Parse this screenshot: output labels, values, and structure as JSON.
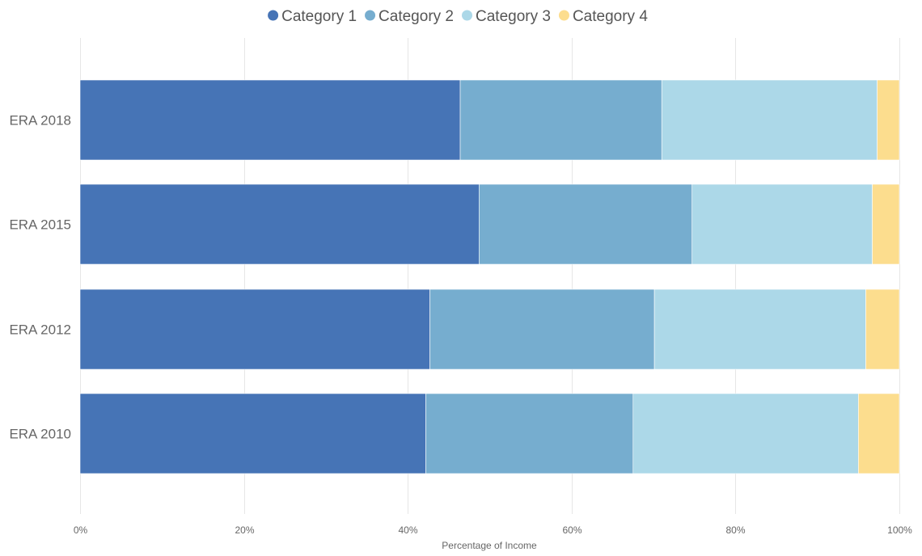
{
  "chart_data": {
    "type": "bar",
    "orientation": "horizontal",
    "stacked": "percent",
    "categories": [
      "ERA 2018",
      "ERA 2015",
      "ERA 2012",
      "ERA 2010"
    ],
    "series": [
      {
        "name": "Category 1",
        "color": "#4674b6",
        "values": [
          46.4,
          48.7,
          42.7,
          42.2
        ]
      },
      {
        "name": "Category 2",
        "color": "#76adcf",
        "values": [
          24.6,
          26.0,
          27.4,
          25.3
        ]
      },
      {
        "name": "Category 3",
        "color": "#acd8e8",
        "values": [
          26.3,
          22.0,
          25.8,
          27.5
        ]
      },
      {
        "name": "Category 4",
        "color": "#fcdd8e",
        "values": [
          2.7,
          3.3,
          4.1,
          5.0
        ]
      }
    ],
    "xlabel": "Percentage of Income",
    "ylabel": "",
    "xlim": [
      0,
      100
    ],
    "x_ticks": [
      "0%",
      "20%",
      "40%",
      "60%",
      "80%",
      "100%"
    ],
    "grid": "vertical",
    "legend": "top-center"
  }
}
